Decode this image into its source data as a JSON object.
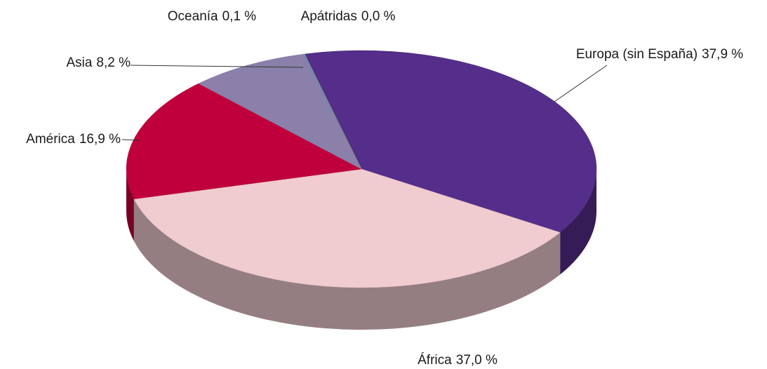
{
  "chart_data": {
    "type": "pie",
    "categories": [
      "Europa (sin España)",
      "África",
      "América",
      "Asia",
      "Oceanía",
      "Apátridas"
    ],
    "values": [
      37.9,
      37.0,
      16.9,
      8.2,
      0.1,
      0.0
    ],
    "value_labels": [
      "37,9 %",
      "37,0 %",
      "16,9 %",
      "8,2 %",
      "0,1 %",
      "0,0 %"
    ],
    "colors": [
      "#552d8a",
      "#f0cbd0",
      "#c0003c",
      "#8a80aa",
      "#6a8fc8",
      "#9bbb59"
    ]
  }
}
